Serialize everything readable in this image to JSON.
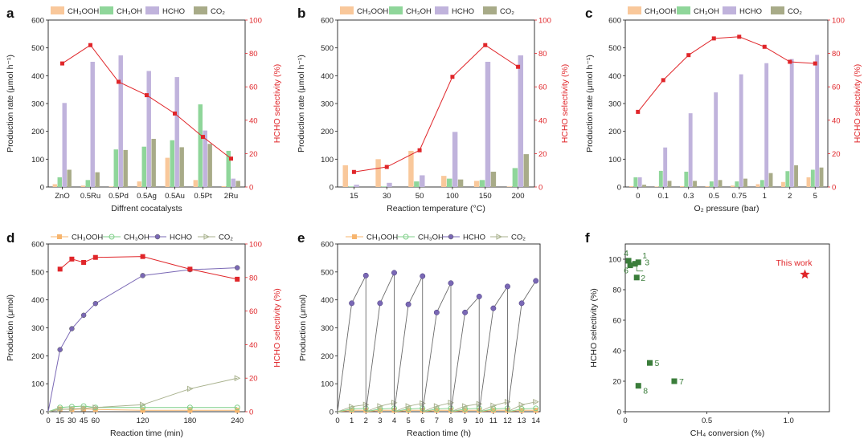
{
  "colors": {
    "CH3OOH": "#f9c89b",
    "CH3OH": "#8fd69a",
    "HCHO": "#c0b3dc",
    "CO2": "#a8ab88",
    "selectivity": "#e0262a",
    "pts": "#3a7d3a",
    "this_work": "#e0262a",
    "line_CH3OOH": "#f7b56e",
    "line_CH3OH": "#7fcf88",
    "line_HCHO": "#7a68b5",
    "line_CO2": "#a9b28e"
  },
  "legend_labels": {
    "CH3OOH": "CH₃OOH",
    "CH3OH": "CH₃OH",
    "HCHO": "HCHO",
    "CO2": "CO₂"
  },
  "chart_data": [
    {
      "panel": "a",
      "type": "bar",
      "xlabel": "Diffrent cocatalysts",
      "ylabel": "Production rate (μmol h⁻¹)",
      "y2label": "HCHO selectivity (%)",
      "ylim": [
        0,
        600
      ],
      "y2lim": [
        0,
        100
      ],
      "yticks": [
        "0",
        "100",
        "200",
        "300",
        "400",
        "500",
        "600"
      ],
      "y2ticks": [
        "0",
        "20",
        "40",
        "60",
        "80",
        "100"
      ],
      "categories": [
        "ZnO",
        "0.5Ru",
        "0.5Pd",
        "0.5Ag",
        "0.5Au",
        "0.5Pt",
        "2Ru"
      ],
      "series": [
        {
          "name": "CH₃OOH",
          "values": [
            10,
            5,
            2,
            20,
            105,
            25,
            3
          ]
        },
        {
          "name": "CH₃OH",
          "values": [
            35,
            25,
            135,
            145,
            168,
            297,
            130
          ]
        },
        {
          "name": "HCHO",
          "values": [
            302,
            450,
            473,
            417,
            395,
            203,
            30
          ]
        },
        {
          "name": "CO₂",
          "values": [
            62,
            53,
            133,
            173,
            143,
            155,
            22
          ]
        }
      ],
      "line": {
        "name": "HCHO selectivity",
        "values": [
          74,
          85,
          63,
          55,
          44,
          30,
          17
        ]
      },
      "legend": "top"
    },
    {
      "panel": "b",
      "type": "bar",
      "xlabel": "Reaction temperature (°C)",
      "ylabel": "Production rate (μmol h⁻¹)",
      "y2label": "HCHO selectivity (%)",
      "ylim": [
        0,
        600
      ],
      "y2lim": [
        0,
        100
      ],
      "yticks": [
        "0",
        "100",
        "200",
        "300",
        "400",
        "500",
        "600"
      ],
      "y2ticks": [
        "0",
        "20",
        "40",
        "60",
        "80",
        "100"
      ],
      "categories": [
        "15",
        "30",
        "50",
        "100",
        "150",
        "200"
      ],
      "series": [
        {
          "name": "CH₃OOH",
          "values": [
            78,
            100,
            130,
            40,
            22,
            2
          ]
        },
        {
          "name": "CH₃OH",
          "values": [
            2,
            2,
            20,
            30,
            25,
            68
          ]
        },
        {
          "name": "HCHO",
          "values": [
            8,
            15,
            42,
            198,
            450,
            473
          ]
        },
        {
          "name": "CO₂",
          "values": [
            0,
            0,
            0,
            27,
            55,
            118
          ]
        }
      ],
      "line": {
        "name": "HCHO selectivity",
        "values": [
          9,
          12,
          22,
          66,
          85,
          72
        ]
      },
      "legend": "top"
    },
    {
      "panel": "c",
      "type": "bar",
      "xlabel": "O₂ pressure (bar)",
      "ylabel": "Production rate (μmol h⁻¹)",
      "y2label": "HCHO selectivity (%)",
      "ylim": [
        0,
        600
      ],
      "y2lim": [
        0,
        100
      ],
      "yticks": [
        "0",
        "100",
        "200",
        "300",
        "400",
        "500",
        "600"
      ],
      "y2ticks": [
        "0",
        "20",
        "40",
        "60",
        "80",
        "100"
      ],
      "categories": [
        "0",
        "0.1",
        "0.3",
        "0.5",
        "0.75",
        "1",
        "2",
        "5"
      ],
      "series": [
        {
          "name": "CH₃OOH",
          "values": [
            3,
            2,
            3,
            3,
            5,
            10,
            18,
            35
          ]
        },
        {
          "name": "CH₃OH",
          "values": [
            35,
            58,
            55,
            20,
            20,
            25,
            57,
            62
          ]
        },
        {
          "name": "HCHO",
          "values": [
            35,
            142,
            265,
            340,
            405,
            445,
            460,
            475
          ]
        },
        {
          "name": "CO₂",
          "values": [
            8,
            22,
            22,
            25,
            30,
            50,
            78,
            70
          ]
        }
      ],
      "line": {
        "name": "HCHO selectivity",
        "values": [
          45,
          64,
          79,
          89,
          90,
          84,
          75,
          74
        ]
      },
      "legend": "top"
    },
    {
      "panel": "d",
      "type": "line",
      "xlabel": "Reaction time (min)",
      "ylabel": "Production (μmol)",
      "y2label": "HCHO selectivity (%)",
      "xlim": [
        0,
        250
      ],
      "ylim": [
        0,
        600
      ],
      "y2lim": [
        0,
        100
      ],
      "xticks": [
        0,
        15,
        30,
        45,
        60,
        120,
        180,
        240
      ],
      "yticks": [
        "0",
        "100",
        "200",
        "300",
        "400",
        "500",
        "600"
      ],
      "y2ticks": [
        "0",
        "20",
        "40",
        "60",
        "80",
        "100"
      ],
      "x": [
        15,
        30,
        45,
        60,
        120,
        180,
        240
      ],
      "series": [
        {
          "name": "CH₃OOH",
          "values": [
            10,
            8,
            10,
            8,
            5,
            5,
            5
          ]
        },
        {
          "name": "CH₃OH",
          "values": [
            15,
            18,
            20,
            15,
            15,
            15,
            15
          ]
        },
        {
          "name": "HCHO",
          "values": [
            222,
            297,
            345,
            387,
            487,
            508,
            515
          ]
        },
        {
          "name": "CO₂",
          "values": [
            8,
            10,
            12,
            15,
            25,
            82,
            120
          ]
        }
      ],
      "line": {
        "name": "HCHO selectivity",
        "values": [
          85,
          91,
          89,
          92,
          92.5,
          85,
          79
        ]
      },
      "legend": "top"
    },
    {
      "panel": "e",
      "type": "line",
      "xlabel": "Reaction time (h)",
      "ylabel": "Production (μmol)",
      "xlim": [
        0,
        14.3
      ],
      "ylim": [
        0,
        600
      ],
      "xticks": [
        "0",
        "1",
        "2",
        "3",
        "4",
        "5",
        "6",
        "7",
        "8",
        "9",
        "10",
        "11",
        "12",
        "13",
        "14"
      ],
      "yticks": [
        "0",
        "100",
        "200",
        "300",
        "400",
        "500",
        "600"
      ],
      "hcho_cycles": [
        {
          "x": [
            0,
            1,
            2
          ],
          "y": [
            0,
            388,
            487
          ]
        },
        {
          "x": [
            2,
            3,
            4
          ],
          "y": [
            0,
            388,
            497
          ]
        },
        {
          "x": [
            4,
            5,
            6
          ],
          "y": [
            0,
            384,
            485
          ]
        },
        {
          "x": [
            6,
            7,
            8
          ],
          "y": [
            0,
            355,
            460
          ]
        },
        {
          "x": [
            8,
            9,
            10
          ],
          "y": [
            0,
            355,
            412
          ]
        },
        {
          "x": [
            10,
            11,
            12
          ],
          "y": [
            0,
            370,
            448
          ]
        },
        {
          "x": [
            12,
            13,
            14
          ],
          "y": [
            0,
            388,
            468
          ]
        }
      ],
      "co2_cycles": [
        {
          "x": [
            0,
            1,
            2
          ],
          "y": [
            0,
            18,
            25
          ]
        },
        {
          "x": [
            2,
            3,
            4
          ],
          "y": [
            0,
            20,
            32
          ]
        },
        {
          "x": [
            4,
            5,
            6
          ],
          "y": [
            0,
            20,
            30
          ]
        },
        {
          "x": [
            6,
            7,
            8
          ],
          "y": [
            0,
            20,
            32
          ]
        },
        {
          "x": [
            8,
            9,
            10
          ],
          "y": [
            0,
            20,
            28
          ]
        },
        {
          "x": [
            10,
            11,
            12
          ],
          "y": [
            0,
            22,
            35
          ]
        },
        {
          "x": [
            12,
            13,
            14
          ],
          "y": [
            0,
            25,
            35
          ]
        }
      ],
      "ch3oh_cycles": [
        {
          "x": [
            0,
            1,
            2
          ],
          "y": [
            0,
            10,
            12
          ]
        },
        {
          "x": [
            2,
            3,
            4
          ],
          "y": [
            0,
            10,
            12
          ]
        },
        {
          "x": [
            4,
            5,
            6
          ],
          "y": [
            0,
            10,
            12
          ]
        },
        {
          "x": [
            6,
            7,
            8
          ],
          "y": [
            0,
            10,
            12
          ]
        },
        {
          "x": [
            8,
            9,
            10
          ],
          "y": [
            0,
            10,
            12
          ]
        },
        {
          "x": [
            10,
            11,
            12
          ],
          "y": [
            0,
            10,
            12
          ]
        },
        {
          "x": [
            12,
            13,
            14
          ],
          "y": [
            0,
            10,
            12
          ]
        }
      ],
      "ch3ooh_cycles": [
        {
          "x": [
            0,
            1,
            2
          ],
          "y": [
            0,
            5,
            5
          ]
        },
        {
          "x": [
            2,
            3,
            4
          ],
          "y": [
            0,
            5,
            5
          ]
        },
        {
          "x": [
            4,
            5,
            6
          ],
          "y": [
            0,
            5,
            5
          ]
        },
        {
          "x": [
            6,
            7,
            8
          ],
          "y": [
            0,
            5,
            5
          ]
        },
        {
          "x": [
            8,
            9,
            10
          ],
          "y": [
            0,
            5,
            5
          ]
        },
        {
          "x": [
            10,
            11,
            12
          ],
          "y": [
            0,
            5,
            5
          ]
        },
        {
          "x": [
            12,
            13,
            14
          ],
          "y": [
            0,
            5,
            5
          ]
        }
      ],
      "legend": "top"
    },
    {
      "panel": "f",
      "type": "scatter",
      "xlabel": "CH₄ conversion (%)",
      "ylabel": "HCHO selectivity (%)",
      "xlim": [
        0,
        1.25
      ],
      "ylim": [
        0,
        110
      ],
      "xticks": [
        "0",
        "0.5",
        "1.0"
      ],
      "yticks": [
        "0",
        "20",
        "40",
        "60",
        "80",
        "100"
      ],
      "points": [
        {
          "label": "1",
          "x": 0.08,
          "y": 98
        },
        {
          "label": "2",
          "x": 0.07,
          "y": 88
        },
        {
          "label": "3",
          "x": 0.06,
          "y": 97
        },
        {
          "label": "4",
          "x": 0.02,
          "y": 99
        },
        {
          "label": "5",
          "x": 0.15,
          "y": 32
        },
        {
          "label": "6",
          "x": 0.03,
          "y": 96
        },
        {
          "label": "7",
          "x": 0.3,
          "y": 20
        },
        {
          "label": "8",
          "x": 0.08,
          "y": 17
        }
      ],
      "this_work": {
        "label": "This work",
        "x": 1.1,
        "y": 90
      }
    }
  ]
}
